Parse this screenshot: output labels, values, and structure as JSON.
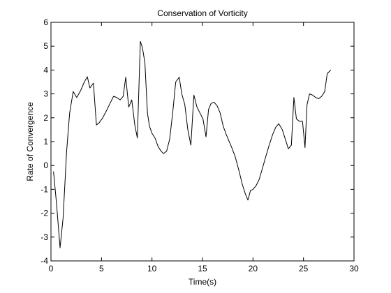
{
  "chart_data": {
    "type": "line",
    "title": "Conservation of Vorticity",
    "xlabel": "Time(s)",
    "ylabel": "Rate of Convergence",
    "xlim": [
      0,
      30
    ],
    "ylim": [
      -4,
      6
    ],
    "xticks": [
      0,
      5,
      10,
      15,
      20,
      25,
      30
    ],
    "yticks": [
      -4,
      -3,
      -2,
      -1,
      0,
      1,
      2,
      3,
      4,
      5,
      6
    ],
    "grid": false,
    "legend": "none",
    "line_color": "#000000",
    "series": [
      {
        "x": [
          0.25,
          0.55,
          0.9,
          1.2,
          1.55,
          1.85,
          2.2,
          2.55,
          2.95,
          3.3,
          3.6,
          3.85,
          4.2,
          4.5,
          4.75,
          5.1,
          5.5,
          5.9,
          6.2,
          6.5,
          6.85,
          7.15,
          7.4,
          7.7,
          8.0,
          8.3,
          8.55,
          8.85,
          9.05,
          9.3,
          9.55,
          9.75,
          10.0,
          10.3,
          10.6,
          10.9,
          11.15,
          11.45,
          11.75,
          12.05,
          12.35,
          12.7,
          12.95,
          13.25,
          13.55,
          13.85,
          14.15,
          14.45,
          14.75,
          15.05,
          15.35,
          15.6,
          15.85,
          16.15,
          16.45,
          16.75,
          17.05,
          17.35,
          17.6,
          17.9,
          18.25,
          18.6,
          18.95,
          19.25,
          19.5,
          19.75,
          20.0,
          20.3,
          20.6,
          20.95,
          21.25,
          21.6,
          21.95,
          22.25,
          22.55,
          22.9,
          23.2,
          23.5,
          23.8,
          24.05,
          24.3,
          24.6,
          24.9,
          25.15,
          25.35,
          25.6,
          25.9,
          26.2,
          26.5,
          26.8,
          27.1,
          27.35,
          27.7
        ],
        "y": [
          -0.25,
          -1.6,
          -3.45,
          -2.2,
          0.6,
          2.2,
          3.1,
          2.85,
          3.15,
          3.5,
          3.72,
          3.25,
          3.45,
          1.7,
          1.78,
          1.98,
          2.3,
          2.65,
          2.9,
          2.85,
          2.75,
          2.9,
          3.7,
          2.45,
          2.75,
          1.7,
          1.15,
          5.2,
          4.95,
          4.3,
          2.2,
          1.65,
          1.35,
          1.15,
          0.8,
          0.6,
          0.5,
          0.6,
          1.1,
          2.2,
          3.5,
          3.7,
          3.0,
          2.55,
          1.5,
          0.85,
          2.95,
          2.45,
          2.2,
          1.95,
          1.2,
          2.35,
          2.6,
          2.65,
          2.5,
          2.2,
          1.65,
          1.3,
          1.05,
          0.75,
          0.35,
          -0.2,
          -0.8,
          -1.2,
          -1.45,
          -1.05,
          -1.0,
          -0.85,
          -0.6,
          -0.1,
          0.35,
          0.85,
          1.3,
          1.6,
          1.75,
          1.5,
          1.1,
          0.7,
          0.85,
          2.85,
          1.95,
          1.85,
          1.85,
          0.75,
          2.55,
          3.0,
          2.95,
          2.85,
          2.8,
          2.9,
          3.1,
          3.85,
          4.0
        ]
      }
    ]
  }
}
